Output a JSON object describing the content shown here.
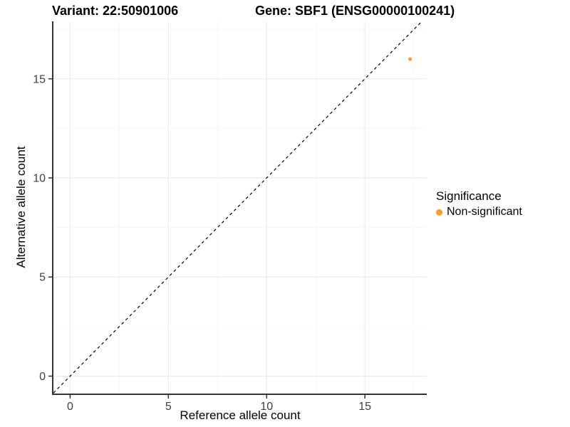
{
  "header": {
    "variant_title": "Variant: 22:50901006",
    "gene_title": "Gene: SBF1 (ENSG00000100241)"
  },
  "legend": {
    "title": "Significance",
    "items": [
      {
        "label": "Non-significant",
        "color": "#F9A125"
      }
    ]
  },
  "chart_data": {
    "type": "scatter",
    "title": "",
    "xlabel": "Reference allele count",
    "ylabel": "Alternative allele count",
    "x_ticks": [
      0,
      5,
      10,
      15
    ],
    "y_ticks": [
      0,
      5,
      10,
      15
    ],
    "x_minor_ticks": [
      2.5,
      7.5,
      12.5,
      17.5
    ],
    "y_minor_ticks": [
      2.5,
      7.5,
      12.5,
      17.5
    ],
    "xlim": [
      -0.85,
      18.15
    ],
    "ylim": [
      -0.88,
      17.9
    ],
    "grid": true,
    "legend_position": "right",
    "series": [
      {
        "name": "Non-significant",
        "color": "#F9A125",
        "points": [
          {
            "x": 17.3,
            "y": 16
          }
        ]
      }
    ],
    "reference_line": {
      "equation": "y = x",
      "style": "dashed",
      "color": "#000000"
    },
    "colors": {
      "grid_major": "#EBEBEB",
      "grid_minor": "#F6F6F6",
      "axis_line": "#333333",
      "tick_label": "#404040",
      "panel_background": "#FFFFFF"
    }
  }
}
